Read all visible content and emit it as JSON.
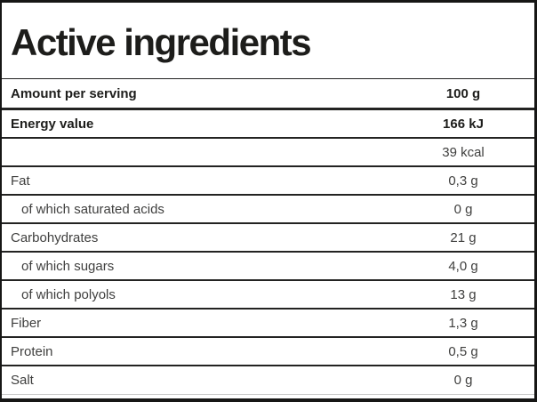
{
  "header": {
    "title": "Active ingredients"
  },
  "table": {
    "header_row": {
      "label": "Amount per serving",
      "value": "100 g"
    },
    "rows": [
      {
        "label": "Energy value",
        "value": "166 kJ"
      },
      {
        "label": "",
        "value": "39 kcal"
      },
      {
        "label": "Fat",
        "value": "0,3 g"
      },
      {
        "label": "of which saturated acids",
        "value": "0 g"
      },
      {
        "label": "Carbohydrates",
        "value": "21 g"
      },
      {
        "label": "of which sugars",
        "value": "4,0 g"
      },
      {
        "label": "of which polyols",
        "value": "13 g"
      },
      {
        "label": "Fiber",
        "value": "1,3 g"
      },
      {
        "label": "Protein",
        "value": "0,5 g"
      },
      {
        "label": "Salt",
        "value": "0 g"
      }
    ]
  },
  "colors": {
    "frame_border": "#161615",
    "text_dark": "#1d1d1b",
    "text_gray": "#3f3f3e",
    "row_separator": "#232322",
    "light_separator": "#c9c9c9",
    "background": "#ffffff"
  }
}
